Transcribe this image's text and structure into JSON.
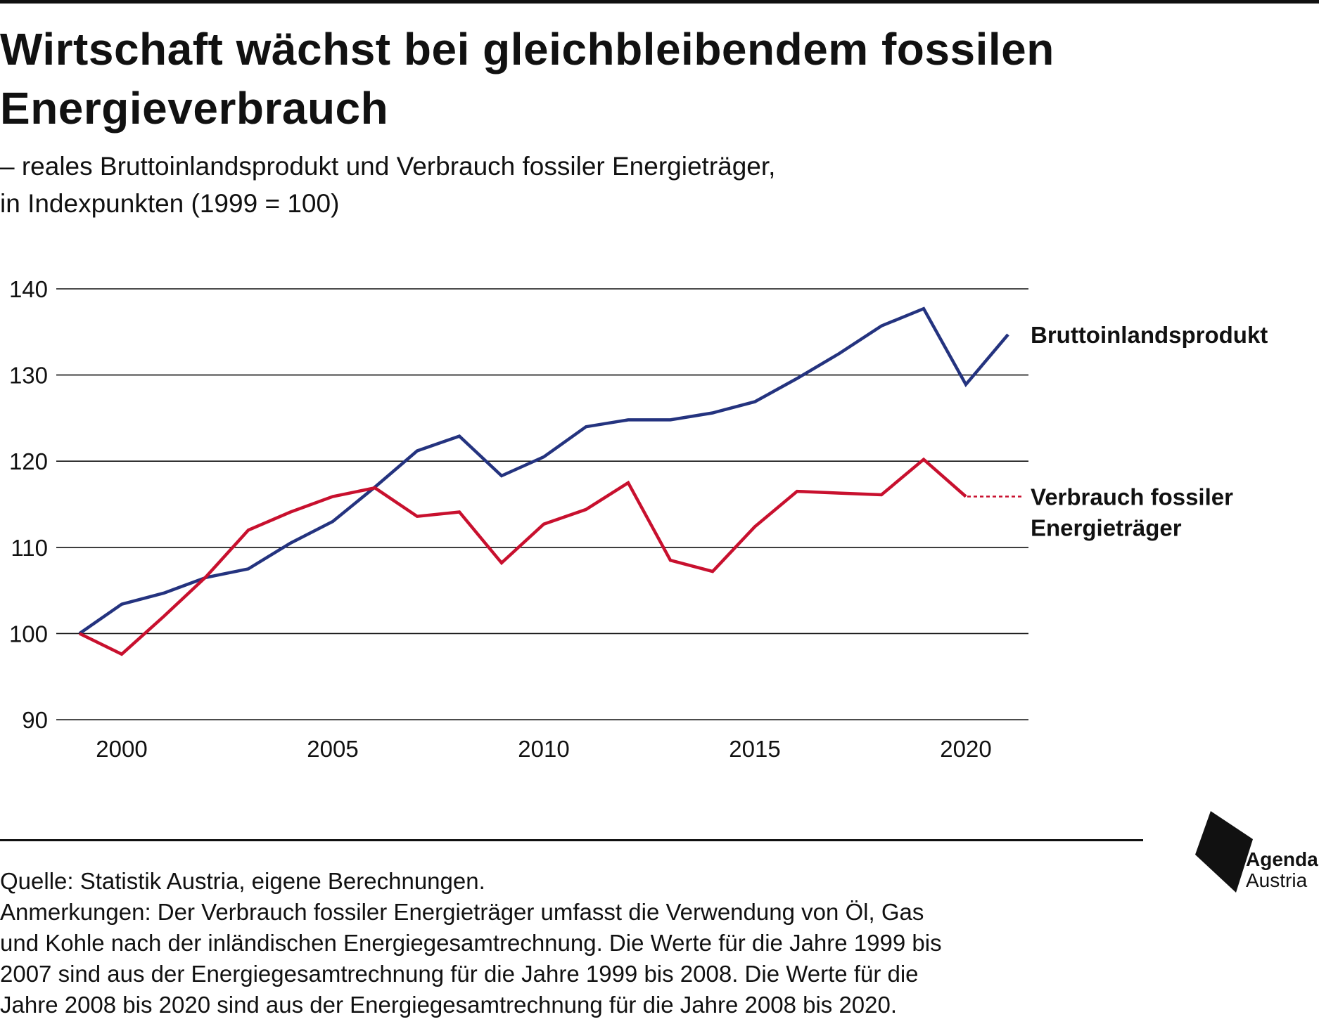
{
  "header": {
    "title": "Wirtschaft wächst bei gleichbleibendem fossilen Energieverbrauch",
    "subtitle_line1": "– reales Bruttoinlandsprodukt und Verbrauch fossiler Energieträger,",
    "subtitle_line2": "in Indexpunkten (1999 = 100)"
  },
  "chart_data": {
    "type": "line",
    "title": "Wirtschaft wächst bei gleichbleibendem fossilen Energieverbrauch",
    "subtitle": "– reales Bruttoinlandsprodukt und Verbrauch fossiler Energieträger, in Indexpunkten (1999 = 100)",
    "xlabel": "",
    "ylabel": "",
    "xlim": [
      1999,
      2021
    ],
    "ylim": [
      90,
      140
    ],
    "yticks": [
      90,
      100,
      110,
      120,
      130,
      140
    ],
    "xticks": [
      2000,
      2005,
      2010,
      2015,
      2020
    ],
    "grid": true,
    "legend": "direct labels right of line ends",
    "x": [
      1999,
      2000,
      2001,
      2002,
      2003,
      2004,
      2005,
      2006,
      2007,
      2008,
      2009,
      2010,
      2011,
      2012,
      2013,
      2014,
      2015,
      2016,
      2017,
      2018,
      2019,
      2020,
      2021
    ],
    "series": [
      {
        "name": "Bruttoinlandsprodukt",
        "color": "#24337f",
        "x": [
          1999,
          2000,
          2001,
          2002,
          2003,
          2004,
          2005,
          2006,
          2007,
          2008,
          2009,
          2010,
          2011,
          2012,
          2013,
          2014,
          2015,
          2016,
          2017,
          2018,
          2019,
          2020,
          2021
        ],
        "values": [
          100,
          103.4,
          104.7,
          106.5,
          107.5,
          110.5,
          113,
          117,
          121.2,
          122.9,
          118.3,
          120.5,
          124,
          124.8,
          124.8,
          125.6,
          126.9,
          129.6,
          132.5,
          135.7,
          137.7,
          128.9,
          134.7
        ]
      },
      {
        "name": "Verbrauch fossiler Energieträger",
        "name_line1": "Verbrauch fossiler",
        "name_line2": "Energieträger",
        "color": "#c8102e",
        "x": [
          1999,
          2000,
          2001,
          2002,
          2003,
          2004,
          2005,
          2006,
          2007,
          2008,
          2009,
          2010,
          2011,
          2012,
          2013,
          2014,
          2015,
          2016,
          2017,
          2018,
          2019,
          2020
        ],
        "values": [
          100,
          97.6,
          102,
          106.6,
          112,
          114.1,
          115.9,
          116.9,
          113.6,
          114.1,
          108.2,
          112.7,
          114.4,
          117.5,
          108.5,
          107.2,
          112.4,
          116.5,
          116.3,
          116.1,
          120.2,
          115.9
        ]
      }
    ]
  },
  "footer": {
    "source": "Quelle: Statistik Austria, eigene Berechnungen.",
    "note_line1": "Anmerkungen: Der Verbrauch fossiler Energieträger umfasst die Verwendung von Öl, Gas",
    "note_line2": "und Kohle nach der inländischen Energiegesamtrechnung. Die Werte für die Jahre 1999 bis",
    "note_line3": "2007 sind aus der Energiegesamtrechnung für die Jahre 1999 bis 2008. Die Werte für die",
    "note_line4": "Jahre 2008 bis 2020 sind aus der Energiegesamtrechnung für die Jahre 2008 bis 2020."
  },
  "logo": {
    "line1": "Agenda",
    "line2": "Austria"
  }
}
